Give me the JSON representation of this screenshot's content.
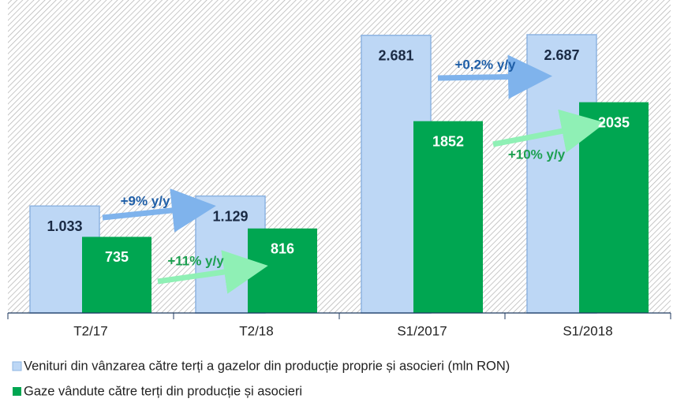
{
  "chart_data": {
    "type": "bar",
    "categories": [
      "T2/17",
      "T2/18",
      "S1/2017",
      "S1/2018"
    ],
    "series": [
      {
        "name": "Venituri din vânzarea către terți a gazelor din producție proprie și asocieri (mln RON)",
        "color": "#bdd7f5",
        "values": [
          1033,
          1129,
          2681,
          2687
        ],
        "value_labels": [
          "1.033",
          "1.129",
          "2.681",
          "2.687"
        ]
      },
      {
        "name": "Gaze vândute către terți din producție și asocieri",
        "color": "#00a651",
        "values": [
          735,
          816,
          1852,
          2035
        ]
      }
    ],
    "annotations": [
      "+9% y/y",
      "+11% y/y",
      "+0,2% y/y",
      "+10% y/y"
    ],
    "legend": "bottom"
  }
}
